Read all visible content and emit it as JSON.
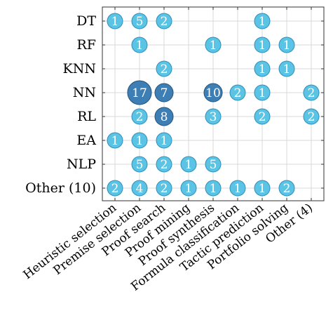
{
  "chart_data": {
    "type": "scatter",
    "title": "",
    "xlabel": "",
    "ylabel": "",
    "grid": true,
    "y_categories": [
      "DT",
      "RF",
      "KNN",
      "NN",
      "RL",
      "EA",
      "NLP",
      "Other (10)"
    ],
    "x_categories": [
      "Heuristic selection",
      "Premise selection",
      "Proof search",
      "Proof mining",
      "Proof synthesis",
      "Formula classification",
      "Tactic prediction",
      "Portfolio solving",
      "Other (4)"
    ],
    "counts": [
      [
        1,
        5,
        2,
        0,
        0,
        0,
        1,
        0,
        0
      ],
      [
        0,
        1,
        0,
        0,
        1,
        0,
        1,
        1,
        0
      ],
      [
        0,
        0,
        2,
        0,
        0,
        0,
        1,
        1,
        0
      ],
      [
        0,
        17,
        7,
        0,
        10,
        2,
        1,
        0,
        2
      ],
      [
        0,
        2,
        8,
        0,
        3,
        0,
        2,
        0,
        2
      ],
      [
        1,
        1,
        1,
        0,
        0,
        0,
        0,
        0,
        0
      ],
      [
        0,
        5,
        2,
        1,
        5,
        0,
        0,
        0,
        0
      ],
      [
        2,
        4,
        2,
        1,
        1,
        1,
        1,
        2,
        0
      ]
    ],
    "colors": {
      "light_fill": "#5bc3e3",
      "light_stroke": "#2f8fbf",
      "dark_fill": "#3d7fb4",
      "dark_stroke": "#24527c",
      "grid": "#d9d9d9",
      "axis": "#333333"
    }
  }
}
